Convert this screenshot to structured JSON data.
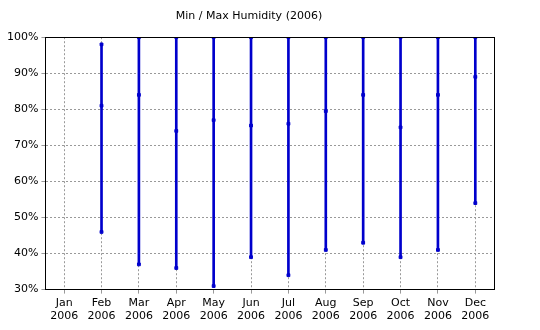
{
  "chart_data": {
    "type": "range",
    "title": "Min / Max Humidity (2006)",
    "categories": [
      "Jan 2006",
      "Feb 2006",
      "Mar 2006",
      "Apr 2006",
      "May 2006",
      "Jun 2006",
      "Jul 2006",
      "Aug 2006",
      "Sep 2006",
      "Oct 2006",
      "Nov 2006",
      "Dec 2006"
    ],
    "min": [
      null,
      46,
      37,
      36,
      31,
      39,
      34,
      41,
      43,
      39,
      41,
      54
    ],
    "max": [
      null,
      98,
      100,
      100,
      100,
      100,
      100,
      100,
      100,
      100,
      100,
      100
    ],
    "values": [
      null,
      81,
      84,
      74,
      77,
      75.5,
      76,
      79.5,
      84,
      75,
      84,
      89
    ],
    "color": "#0000cc",
    "ylim": [
      30,
      100
    ],
    "yticks": [
      {
        "value": 30,
        "label": "30%"
      },
      {
        "value": 40,
        "label": "40%"
      },
      {
        "value": 50,
        "label": "50%"
      },
      {
        "value": 60,
        "label": "60%"
      },
      {
        "value": 70,
        "label": "70%"
      },
      {
        "value": 80,
        "label": "80%"
      },
      {
        "value": 90,
        "label": "90%"
      },
      {
        "value": 100,
        "label": "100%"
      }
    ],
    "grid": true
  }
}
